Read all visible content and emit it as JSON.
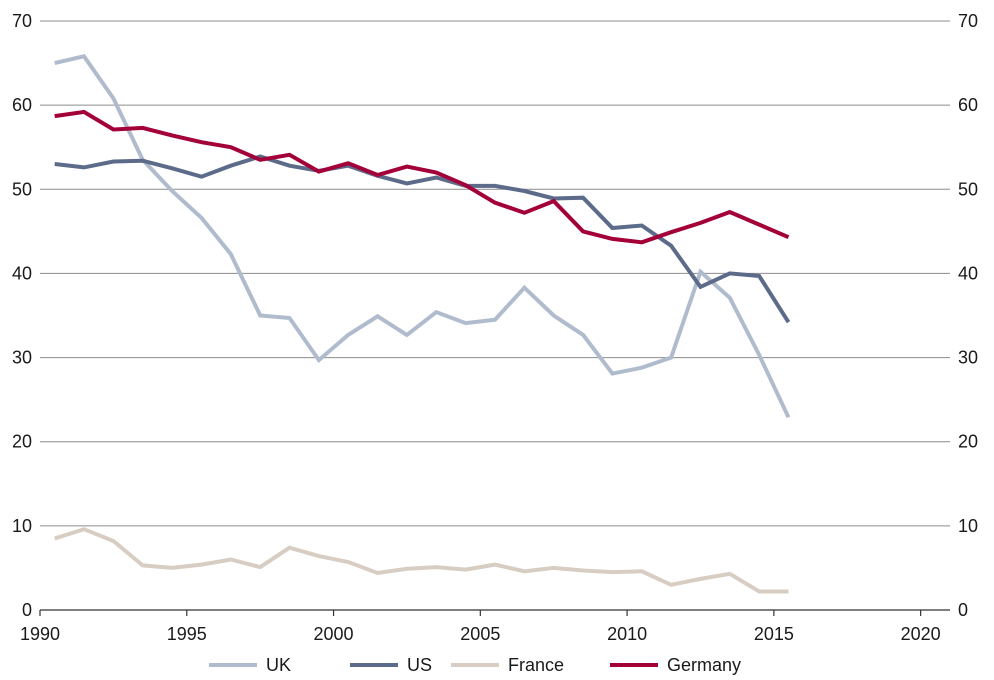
{
  "chart_data": {
    "type": "line",
    "title": "",
    "xlabel": "",
    "ylabel": "",
    "xlim": [
      1990,
      2021
    ],
    "ylim": [
      0,
      70
    ],
    "x_ticks": [
      1990,
      1995,
      2000,
      2005,
      2010,
      2015,
      2020
    ],
    "y_ticks": [
      0,
      10,
      20,
      30,
      40,
      50,
      60,
      70
    ],
    "y_axis_right": true,
    "grid": "horizontal",
    "legend_position": "bottom",
    "x": [
      1990.5,
      1991.5,
      1992.5,
      1993.5,
      1994.5,
      1995.5,
      1996.5,
      1997.5,
      1998.5,
      1999.5,
      2000.5,
      2001.5,
      2002.5,
      2003.5,
      2004.5,
      2005.5,
      2006.5,
      2007.5,
      2008.5,
      2009.5,
      2010.5,
      2011.5,
      2012.5,
      2013.5,
      2014.5,
      2015.5
    ],
    "series": [
      {
        "name": "UK",
        "color": "#b0bccd",
        "values": [
          65.0,
          65.8,
          60.8,
          53.5,
          49.8,
          46.6,
          42.3,
          35.0,
          34.7,
          29.7,
          32.7,
          34.9,
          32.7,
          35.4,
          34.1,
          34.5,
          38.3,
          35.0,
          32.7,
          28.1,
          28.8,
          30.0,
          40.2,
          37.1,
          30.3,
          22.9
        ]
      },
      {
        "name": "US",
        "color": "#5d6b8a",
        "values": [
          53.0,
          52.6,
          53.3,
          53.4,
          52.5,
          51.5,
          52.8,
          53.9,
          52.8,
          52.2,
          52.8,
          51.6,
          50.7,
          51.4,
          50.4,
          50.4,
          49.8,
          48.9,
          49.0,
          45.4,
          45.7,
          43.3,
          38.4,
          40.0,
          39.7,
          34.2
        ]
      },
      {
        "name": "France",
        "color": "#d8cdc3",
        "values": [
          8.5,
          9.6,
          8.2,
          5.3,
          5.0,
          5.4,
          6.0,
          5.1,
          7.4,
          6.4,
          5.7,
          4.4,
          4.9,
          5.1,
          4.8,
          5.4,
          4.6,
          5.0,
          4.7,
          4.5,
          4.6,
          3.0,
          3.7,
          4.3,
          2.2,
          2.2
        ]
      },
      {
        "name": "Germany",
        "color": "#a3003a",
        "values": [
          58.7,
          59.2,
          57.1,
          57.3,
          56.4,
          55.6,
          55.0,
          53.5,
          54.1,
          52.1,
          53.1,
          51.7,
          52.7,
          52.0,
          50.5,
          48.4,
          47.2,
          48.6,
          45.0,
          44.1,
          43.7,
          44.9,
          46.0,
          47.3,
          45.8,
          44.3
        ]
      }
    ]
  }
}
